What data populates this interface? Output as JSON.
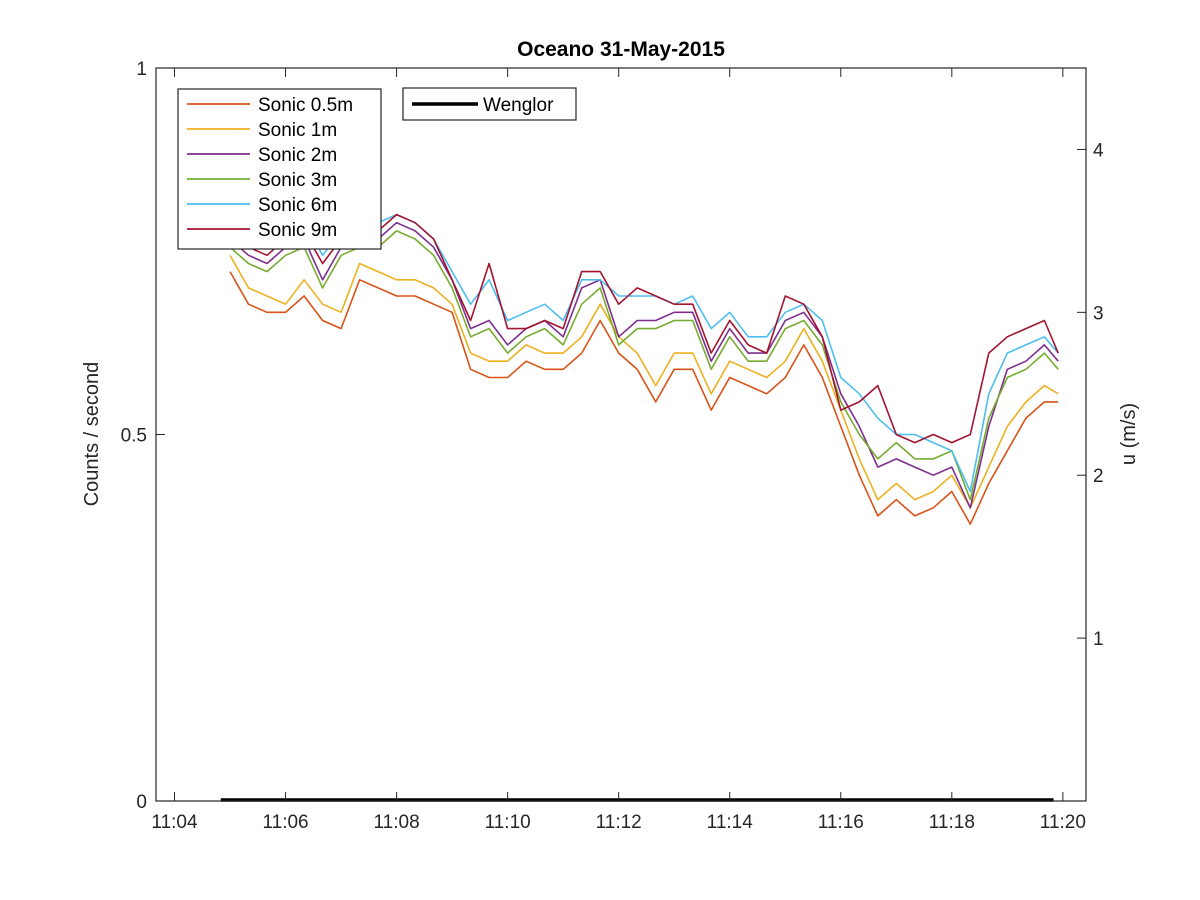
{
  "chart_data": {
    "type": "line",
    "title": "Oceano 31-May-2015",
    "ylabel_left": "Counts / second",
    "ylabel_right": "u (m/s)",
    "xlabel": "",
    "x_ticks": [
      "11:04",
      "11:06",
      "11:08",
      "11:10",
      "11:12",
      "11:14",
      "11:16",
      "11:18",
      "11:20"
    ],
    "xlim": [
      "11:03:40",
      "11:20:25"
    ],
    "ylim_left": [
      0,
      1
    ],
    "y_ticks_left": [
      "0",
      "0.5",
      "1"
    ],
    "ylim_right": [
      0,
      4.5
    ],
    "y_ticks_right": [
      "1",
      "2",
      "3",
      "4"
    ],
    "grid": false,
    "legend_placement": "top-left",
    "series_left": [
      {
        "name": "Wenglor",
        "color": "#000000",
        "x": [
          "11:04:50",
          "11:19:50"
        ],
        "values": [
          0,
          0
        ]
      }
    ],
    "series": [
      {
        "name": "Sonic 0.5m",
        "color": "#D95319",
        "x": [
          "11:05:00",
          "11:05:20",
          "11:05:40",
          "11:06:00",
          "11:06:20",
          "11:06:40",
          "11:07:00",
          "11:07:20",
          "11:07:40",
          "11:08:00",
          "11:08:20",
          "11:08:40",
          "11:09:00",
          "11:09:20",
          "11:09:40",
          "11:10:00",
          "11:10:20",
          "11:10:40",
          "11:11:00",
          "11:11:20",
          "11:11:40",
          "11:12:00",
          "11:12:20",
          "11:12:40",
          "11:13:00",
          "11:13:20",
          "11:13:40",
          "11:14:00",
          "11:14:20",
          "11:14:40",
          "11:15:00",
          "11:15:20",
          "11:15:40",
          "11:16:00",
          "11:16:20",
          "11:16:40",
          "11:17:00",
          "11:17:20",
          "11:17:40",
          "11:18:00",
          "11:18:20",
          "11:18:40",
          "11:19:00",
          "11:19:20",
          "11:19:40",
          "11:19:55"
        ],
        "values": [
          3.25,
          3.05,
          3.0,
          3.0,
          3.1,
          2.95,
          2.9,
          3.2,
          3.15,
          3.1,
          3.1,
          3.05,
          3.0,
          2.65,
          2.6,
          2.6,
          2.7,
          2.65,
          2.65,
          2.75,
          2.95,
          2.75,
          2.65,
          2.45,
          2.65,
          2.65,
          2.4,
          2.6,
          2.55,
          2.5,
          2.6,
          2.8,
          2.6,
          2.3,
          2.0,
          1.75,
          1.85,
          1.75,
          1.8,
          1.9,
          1.7,
          1.95,
          2.15,
          2.35,
          2.45,
          2.45
        ]
      },
      {
        "name": "Sonic 1m",
        "color": "#EDB120",
        "x": [
          "11:05:00",
          "11:05:20",
          "11:05:40",
          "11:06:00",
          "11:06:20",
          "11:06:40",
          "11:07:00",
          "11:07:20",
          "11:07:40",
          "11:08:00",
          "11:08:20",
          "11:08:40",
          "11:09:00",
          "11:09:20",
          "11:09:40",
          "11:10:00",
          "11:10:20",
          "11:10:40",
          "11:11:00",
          "11:11:20",
          "11:11:40",
          "11:12:00",
          "11:12:20",
          "11:12:40",
          "11:13:00",
          "11:13:20",
          "11:13:40",
          "11:14:00",
          "11:14:20",
          "11:14:40",
          "11:15:00",
          "11:15:20",
          "11:15:40",
          "11:16:00",
          "11:16:20",
          "11:16:40",
          "11:17:00",
          "11:17:20",
          "11:17:40",
          "11:18:00",
          "11:18:20",
          "11:18:40",
          "11:19:00",
          "11:19:20",
          "11:19:40",
          "11:19:55"
        ],
        "values": [
          3.35,
          3.15,
          3.1,
          3.05,
          3.2,
          3.05,
          3.0,
          3.3,
          3.25,
          3.2,
          3.2,
          3.15,
          3.05,
          2.75,
          2.7,
          2.7,
          2.8,
          2.75,
          2.75,
          2.85,
          3.05,
          2.85,
          2.75,
          2.55,
          2.75,
          2.75,
          2.5,
          2.7,
          2.65,
          2.6,
          2.7,
          2.9,
          2.7,
          2.4,
          2.1,
          1.85,
          1.95,
          1.85,
          1.9,
          2.0,
          1.8,
          2.05,
          2.3,
          2.45,
          2.55,
          2.5
        ]
      },
      {
        "name": "Sonic 2m",
        "color": "#7E2F8E",
        "x": [
          "11:05:00",
          "11:05:20",
          "11:05:40",
          "11:06:00",
          "11:06:20",
          "11:06:40",
          "11:07:00",
          "11:07:20",
          "11:07:40",
          "11:08:00",
          "11:08:20",
          "11:08:40",
          "11:09:00",
          "11:09:20",
          "11:09:40",
          "11:10:00",
          "11:10:20",
          "11:10:40",
          "11:11:00",
          "11:11:20",
          "11:11:40",
          "11:12:00",
          "11:12:20",
          "11:12:40",
          "11:13:00",
          "11:13:20",
          "11:13:40",
          "11:14:00",
          "11:14:20",
          "11:14:40",
          "11:15:00",
          "11:15:20",
          "11:15:40",
          "11:16:00",
          "11:16:20",
          "11:16:40",
          "11:17:00",
          "11:17:20",
          "11:17:40",
          "11:18:00",
          "11:18:20",
          "11:18:40",
          "11:19:00",
          "11:19:20",
          "11:19:40",
          "11:19:55"
        ],
        "values": [
          3.45,
          3.35,
          3.3,
          3.4,
          3.45,
          3.2,
          3.4,
          3.5,
          3.45,
          3.55,
          3.5,
          3.4,
          3.2,
          2.9,
          2.95,
          2.8,
          2.9,
          2.95,
          2.85,
          3.15,
          3.2,
          2.85,
          2.95,
          2.95,
          3.0,
          3.0,
          2.7,
          2.9,
          2.75,
          2.75,
          2.95,
          3.0,
          2.85,
          2.5,
          2.3,
          2.05,
          2.1,
          2.05,
          2.0,
          2.05,
          1.8,
          2.3,
          2.65,
          2.7,
          2.8,
          2.7
        ]
      },
      {
        "name": "Sonic 3m",
        "color": "#77AC30",
        "x": [
          "11:05:00",
          "11:05:20",
          "11:05:40",
          "11:06:00",
          "11:06:20",
          "11:06:40",
          "11:07:00",
          "11:07:20",
          "11:07:40",
          "11:08:00",
          "11:08:20",
          "11:08:40",
          "11:09:00",
          "11:09:20",
          "11:09:40",
          "11:10:00",
          "11:10:20",
          "11:10:40",
          "11:11:00",
          "11:11:20",
          "11:11:40",
          "11:12:00",
          "11:12:20",
          "11:12:40",
          "11:13:00",
          "11:13:20",
          "11:13:40",
          "11:14:00",
          "11:14:20",
          "11:14:40",
          "11:15:00",
          "11:15:20",
          "11:15:40",
          "11:16:00",
          "11:16:20",
          "11:16:40",
          "11:17:00",
          "11:17:20",
          "11:17:40",
          "11:18:00",
          "11:18:20",
          "11:18:40",
          "11:19:00",
          "11:19:20",
          "11:19:40",
          "11:19:55"
        ],
        "values": [
          3.4,
          3.3,
          3.25,
          3.35,
          3.4,
          3.15,
          3.35,
          3.4,
          3.4,
          3.5,
          3.45,
          3.35,
          3.15,
          2.85,
          2.9,
          2.75,
          2.85,
          2.9,
          2.8,
          3.05,
          3.15,
          2.8,
          2.9,
          2.9,
          2.95,
          2.95,
          2.65,
          2.85,
          2.7,
          2.7,
          2.9,
          2.95,
          2.8,
          2.45,
          2.25,
          2.1,
          2.2,
          2.1,
          2.1,
          2.15,
          1.85,
          2.35,
          2.6,
          2.65,
          2.75,
          2.65
        ]
      },
      {
        "name": "Sonic 6m",
        "color": "#4DBEEE",
        "x": [
          "11:05:00",
          "11:05:20",
          "11:05:40",
          "11:06:00",
          "11:06:20",
          "11:06:40",
          "11:07:00",
          "11:07:20",
          "11:07:40",
          "11:08:00",
          "11:08:20",
          "11:08:40",
          "11:09:00",
          "11:09:20",
          "11:09:40",
          "11:10:00",
          "11:10:20",
          "11:10:40",
          "11:11:00",
          "11:11:20",
          "11:11:40",
          "11:12:00",
          "11:12:20",
          "11:12:40",
          "11:13:00",
          "11:13:20",
          "11:13:40",
          "11:14:00",
          "11:14:20",
          "11:14:40",
          "11:15:00",
          "11:15:20",
          "11:15:40",
          "11:16:00",
          "11:16:20",
          "11:16:40",
          "11:17:00",
          "11:17:20",
          "11:17:40",
          "11:18:00",
          "11:18:20",
          "11:18:40",
          "11:19:00",
          "11:19:20",
          "11:19:40",
          "11:19:55"
        ],
        "values": [
          3.5,
          3.45,
          3.4,
          3.5,
          3.55,
          3.35,
          3.5,
          3.55,
          3.55,
          3.6,
          3.55,
          3.45,
          3.25,
          3.05,
          3.2,
          2.95,
          3.0,
          3.05,
          2.95,
          3.2,
          3.2,
          3.1,
          3.1,
          3.1,
          3.05,
          3.1,
          2.9,
          3.0,
          2.85,
          2.85,
          3.0,
          3.05,
          2.95,
          2.6,
          2.5,
          2.35,
          2.25,
          2.25,
          2.2,
          2.15,
          1.9,
          2.5,
          2.75,
          2.8,
          2.85,
          2.75
        ]
      },
      {
        "name": "Sonic 9m",
        "color": "#A2142F",
        "x": [
          "11:05:00",
          "11:05:20",
          "11:05:40",
          "11:06:00",
          "11:06:20",
          "11:06:40",
          "11:07:00",
          "11:07:20",
          "11:07:40",
          "11:08:00",
          "11:08:20",
          "11:08:40",
          "11:09:00",
          "11:09:20",
          "11:09:40",
          "11:10:00",
          "11:10:20",
          "11:10:40",
          "11:11:00",
          "11:11:20",
          "11:11:40",
          "11:12:00",
          "11:12:20",
          "11:12:40",
          "11:13:00",
          "11:13:20",
          "11:13:40",
          "11:14:00",
          "11:14:20",
          "11:14:40",
          "11:15:00",
          "11:15:20",
          "11:15:40",
          "11:16:00",
          "11:16:20",
          "11:16:40",
          "11:17:00",
          "11:17:20",
          "11:17:40",
          "11:18:00",
          "11:18:20",
          "11:18:40",
          "11:19:00",
          "11:19:20",
          "11:19:40",
          "11:19:55"
        ],
        "values": [
          3.5,
          3.4,
          3.35,
          3.45,
          3.5,
          3.3,
          3.45,
          3.55,
          3.5,
          3.6,
          3.55,
          3.45,
          3.2,
          2.95,
          3.3,
          2.9,
          2.9,
          2.95,
          2.9,
          3.25,
          3.25,
          3.05,
          3.15,
          3.1,
          3.05,
          3.05,
          2.75,
          2.95,
          2.8,
          2.75,
          3.1,
          3.05,
          2.85,
          2.4,
          2.45,
          2.55,
          2.25,
          2.2,
          2.25,
          2.2,
          2.25,
          2.75,
          2.85,
          2.9,
          2.95,
          2.75
        ]
      }
    ]
  }
}
